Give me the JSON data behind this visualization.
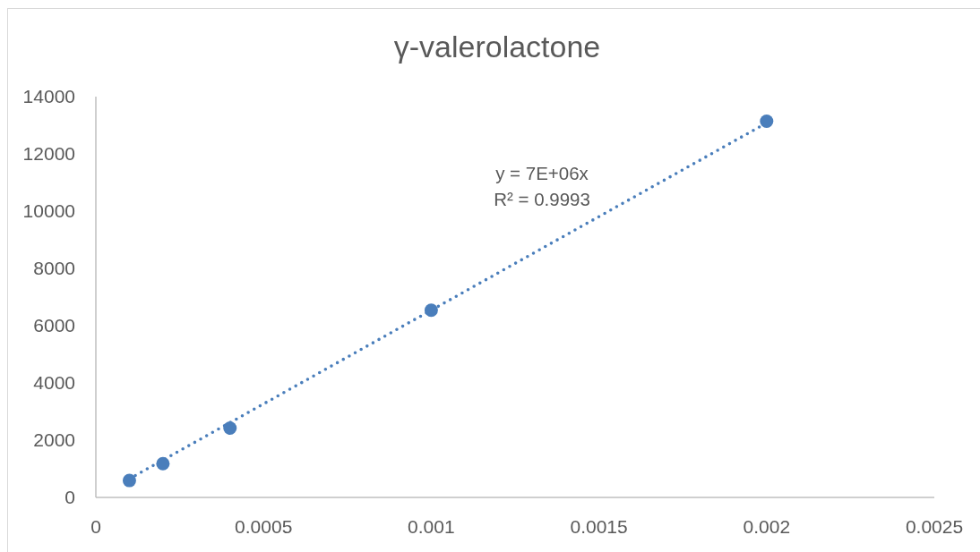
{
  "chart_data": {
    "type": "scatter",
    "title": "γ-valerolactone",
    "xlim": [
      0,
      0.0025
    ],
    "xticks": [
      0,
      0.0005,
      0.001,
      0.0015,
      0.002,
      0.0025
    ],
    "ylim": [
      0,
      14000
    ],
    "yticks": [
      0,
      2000,
      4000,
      6000,
      8000,
      10000,
      12000,
      14000
    ],
    "series": [
      {
        "color": "#4a7ebb",
        "marker": "circle",
        "x": [
          0.0001,
          0.0002,
          0.0004,
          0.001,
          0.002
        ],
        "values": [
          590,
          1180,
          2420,
          6540,
          13140
        ]
      },
      {
        "type": "line",
        "color": "#4a7ebb",
        "line_style": "dotted",
        "x": [
          0.0001,
          0.002
        ],
        "values": [
          650,
          13080
        ]
      }
    ],
    "annotations": [
      "y = 7E+06x",
      "R² = 0.9993"
    ]
  }
}
